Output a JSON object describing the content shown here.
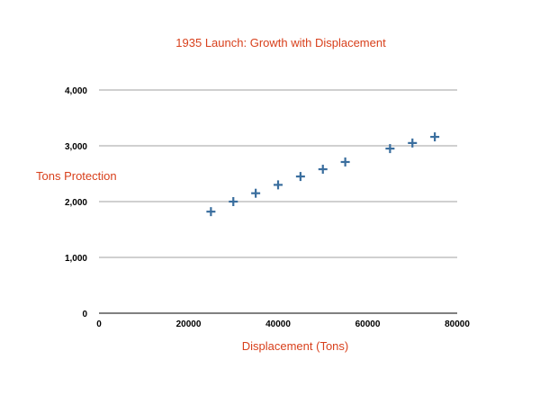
{
  "chart_data": {
    "type": "scatter",
    "title": "1935 Launch: Growth with Displacement",
    "xlabel": "Displacement (Tons)",
    "ylabel": "Tons Protection",
    "xlim": [
      0,
      80000
    ],
    "ylim": [
      0,
      4000
    ],
    "xticks": [
      0,
      20000,
      40000,
      60000,
      80000
    ],
    "xtick_labels": [
      "0",
      "20000",
      "40000",
      "60000",
      "80000"
    ],
    "yticks": [
      0,
      1000,
      2000,
      3000,
      4000
    ],
    "ytick_labels": [
      "0",
      "1,000",
      "2,000",
      "3,000",
      "4,000"
    ],
    "grid": "horizontal",
    "marker": "plus",
    "colors": {
      "marker": "#3a6e9e",
      "title": "#d8401c",
      "grid": "#a0a0a0"
    },
    "series": [
      {
        "x": [
          25000,
          30000,
          35000,
          40000,
          45000,
          50000,
          55000,
          65000,
          70000,
          75000
        ],
        "y": [
          1820,
          2000,
          2150,
          2300,
          2450,
          2580,
          2710,
          2950,
          3050,
          3160
        ]
      }
    ]
  }
}
